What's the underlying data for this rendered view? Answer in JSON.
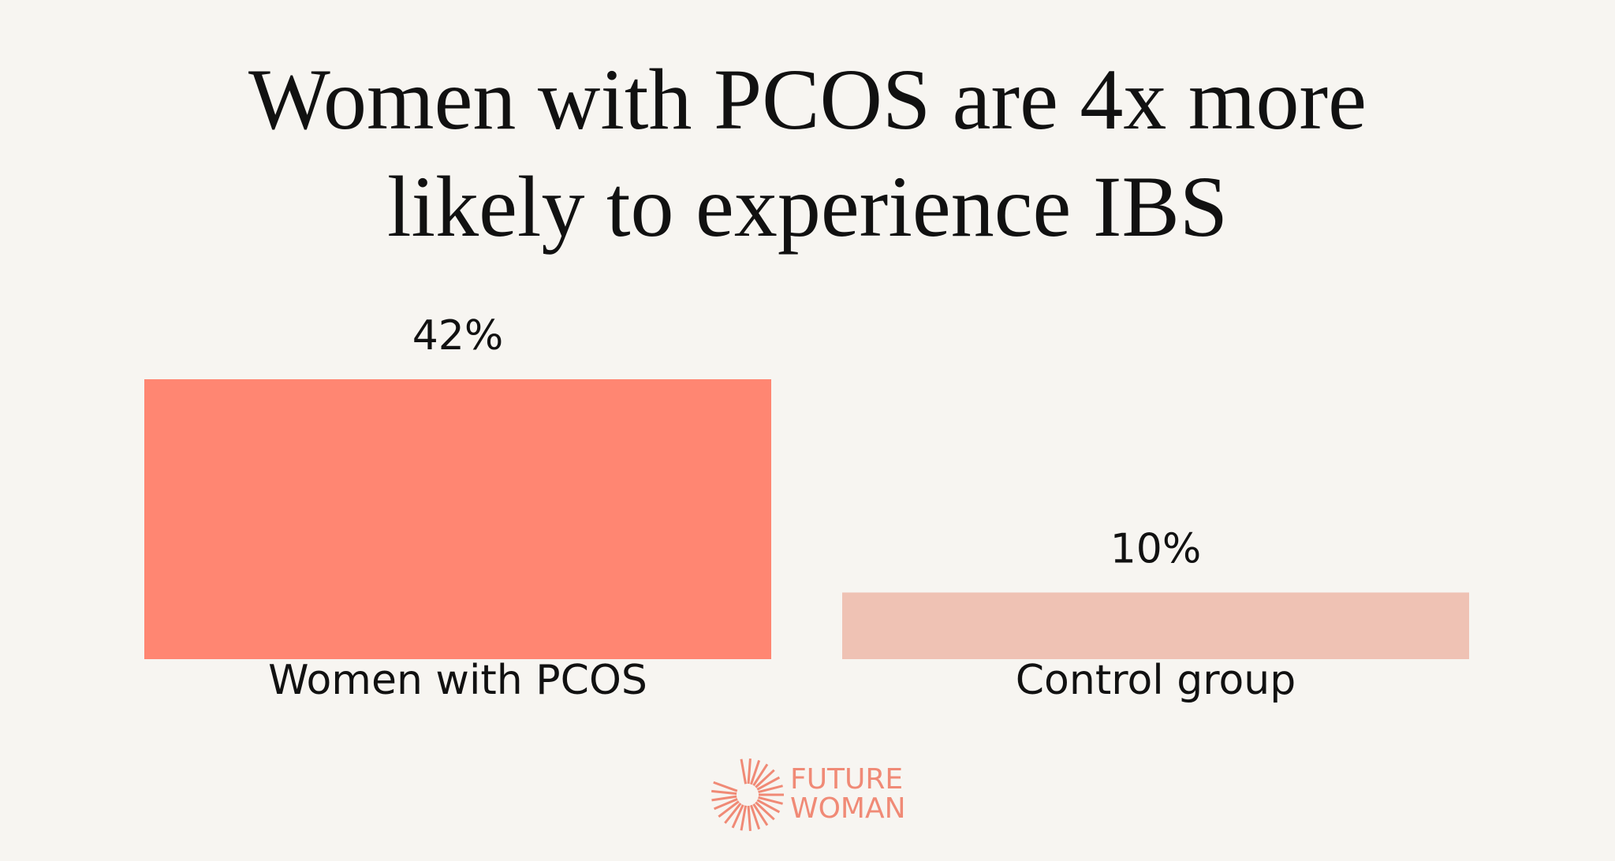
{
  "chart_data": {
    "type": "bar",
    "title": "Women with PCOS are 4x more likely to experience IBS",
    "categories": [
      "Women with PCOS",
      "Control group"
    ],
    "values": [
      42,
      10
    ],
    "value_labels": [
      "42%",
      "10%"
    ],
    "colors": [
      "#ff8672",
      "#efc2b4"
    ]
  },
  "logo": {
    "lines": [
      "FUTURE",
      "WOMAN"
    ]
  }
}
